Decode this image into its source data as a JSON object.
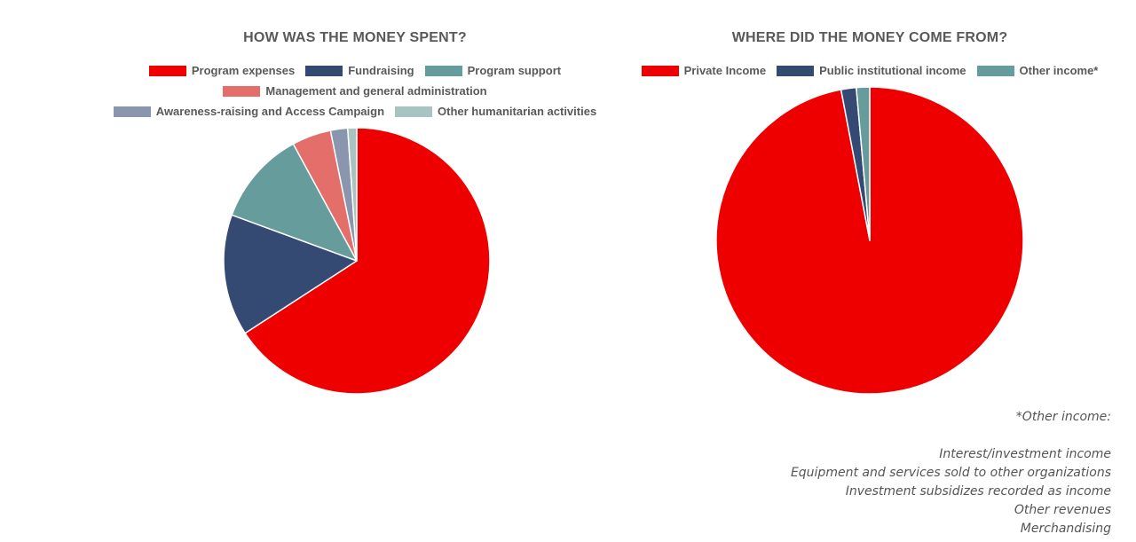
{
  "chart_data": [
    {
      "type": "pie",
      "title": "HOW WAS THE MONEY SPENT?",
      "legend_rows": [
        [
          0,
          1,
          2
        ],
        [
          3
        ],
        [
          4,
          5
        ]
      ],
      "slices": [
        {
          "label": "Program expenses",
          "value": 66.5,
          "color": "#ee0000"
        },
        {
          "label": "Fundraising",
          "value": 14.9,
          "color": "#354a72"
        },
        {
          "label": "Program support",
          "value": 11.6,
          "color": "#669c9b"
        },
        {
          "label": "Management and general administration",
          "value": 4.8,
          "color": "#e46f6a"
        },
        {
          "label": "Awareness-raising and Access Campaign",
          "value": 2.1,
          "color": "#8a96ad"
        },
        {
          "label": "Other humanitarian activities",
          "value": 1.1,
          "color": "#a9c3c3"
        }
      ]
    },
    {
      "type": "pie",
      "title": "WHERE DID THE MONEY COME FROM?",
      "legend_rows": [
        [
          0,
          1,
          2
        ]
      ],
      "slices": [
        {
          "label": "Private Income",
          "value": 97.0,
          "color": "#ee0000"
        },
        {
          "label": "Public institutional income",
          "value": 1.6,
          "color": "#354a72"
        },
        {
          "label": "Other income*",
          "value": 1.4,
          "color": "#669c9b"
        }
      ]
    }
  ],
  "footnote": {
    "title": "*Other income:",
    "items": [
      "Interest/investment income",
      "Equipment and services sold to other organizations",
      "Investment subsidizes recorded as income",
      "Other revenues",
      "Merchandising"
    ]
  }
}
